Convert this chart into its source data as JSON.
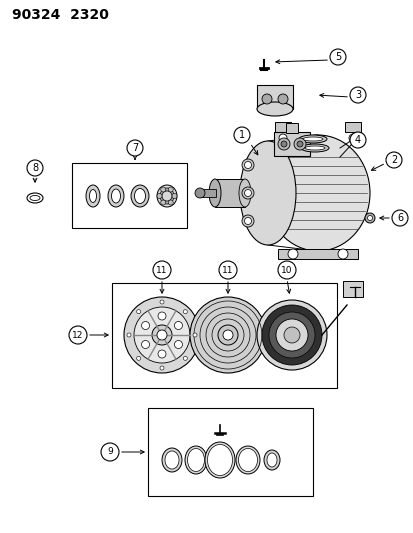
{
  "title": "90324  2320",
  "bg_color": "#ffffff",
  "title_fontsize": 10,
  "fig_width": 4.14,
  "fig_height": 5.33,
  "dpi": 100
}
